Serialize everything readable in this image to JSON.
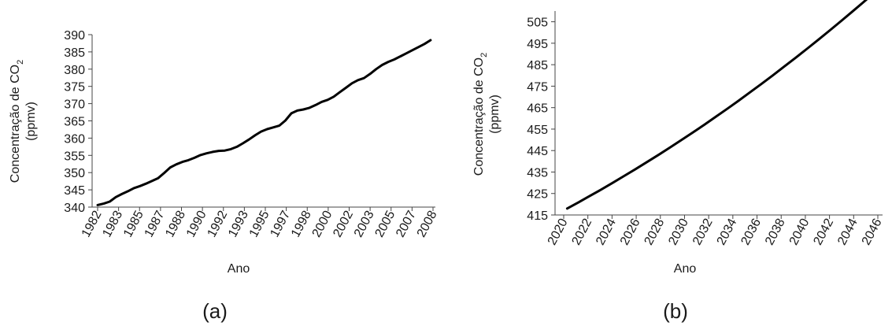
{
  "chart_data": [
    {
      "type": "line",
      "panel_label": "(a)",
      "xlabel": "Ano",
      "ylabel_main": "Concentração de CO",
      "ylabel_sub": "2",
      "ylabel_unit": "(ppmv)",
      "ylim": [
        340,
        390
      ],
      "yticks": [
        "340",
        "345",
        "350",
        "355",
        "360",
        "365",
        "370",
        "375",
        "380",
        "385",
        "390"
      ],
      "xticks": [
        "1982",
        "1983",
        "1985",
        "1987",
        "1988",
        "1990",
        "1992",
        "1993",
        "1995",
        "1997",
        "1998",
        "2000",
        "2002",
        "2003",
        "2005",
        "2007",
        "2008"
      ],
      "xlim": [
        1982,
        2009.7
      ],
      "grid": false,
      "legend": "none",
      "series": [
        {
          "color": "#000000",
          "x": [
            1982.0,
            1982.5,
            1983.0,
            1983.5,
            1984.0,
            1984.5,
            1985.0,
            1985.5,
            1986.0,
            1986.5,
            1987.0,
            1987.5,
            1988.0,
            1988.5,
            1989.0,
            1989.5,
            1990.0,
            1990.5,
            1991.0,
            1991.5,
            1992.0,
            1992.5,
            1993.0,
            1993.5,
            1994.0,
            1994.5,
            1995.0,
            1995.5,
            1996.0,
            1996.5,
            1997.0,
            1997.5,
            1998.0,
            1998.5,
            1999.0,
            1999.5,
            2000.0,
            2000.5,
            2001.0,
            2001.5,
            2002.0,
            2002.5,
            2003.0,
            2003.5,
            2004.0,
            2004.5,
            2005.0,
            2005.5,
            2006.0,
            2006.5,
            2007.0,
            2007.5,
            2008.0,
            2008.5,
            2009.0,
            2009.5
          ],
          "y": [
            340.6,
            341.0,
            341.6,
            342.9,
            343.8,
            344.6,
            345.5,
            346.1,
            346.8,
            347.6,
            348.4,
            349.9,
            351.5,
            352.4,
            353.1,
            353.6,
            354.3,
            355.1,
            355.6,
            356.0,
            356.3,
            356.4,
            356.8,
            357.5,
            358.5,
            359.6,
            360.8,
            361.9,
            362.6,
            363.1,
            363.6,
            365.1,
            367.2,
            368.0,
            368.3,
            368.8,
            369.6,
            370.5,
            371.1,
            372.0,
            373.3,
            374.6,
            375.9,
            376.8,
            377.4,
            378.6,
            380.0,
            381.2,
            382.1,
            382.8,
            383.7,
            384.6,
            385.5,
            386.4,
            387.3,
            388.4
          ]
        }
      ]
    },
    {
      "type": "line",
      "panel_label": "(b)",
      "xlabel": "Ano",
      "ylabel_main": "Concentração de CO",
      "ylabel_sub": "2",
      "ylabel_unit": "(ppmv)",
      "ylim": [
        415,
        510
      ],
      "yticks": [
        "415",
        "425",
        "435",
        "445",
        "455",
        "465",
        "475",
        "485",
        "495",
        "505"
      ],
      "xticks": [
        "2020",
        "2022",
        "2024",
        "2026",
        "2028",
        "2030",
        "2032",
        "2034",
        "2036",
        "2038",
        "2040",
        "2042",
        "2044",
        "2046"
      ],
      "xlim": [
        2019.7,
        2047.2
      ],
      "grid": false,
      "legend": "none",
      "series": [
        {
          "color": "#000000",
          "x": [
            2020,
            2021,
            2022,
            2023,
            2024,
            2025,
            2026,
            2027,
            2028,
            2029,
            2030,
            2031,
            2032,
            2033,
            2034,
            2035,
            2036,
            2037,
            2038,
            2039,
            2040,
            2041,
            2042,
            2043,
            2044,
            2045,
            2046,
            2047
          ],
          "y": [
            418.0,
            420.9,
            423.9,
            426.9,
            430.0,
            433.2,
            436.4,
            439.7,
            443.0,
            446.4,
            449.9,
            453.4,
            457.0,
            460.7,
            464.4,
            468.2,
            472.1,
            476.0,
            480.0,
            484.1,
            488.2,
            492.4,
            496.7,
            501.0,
            505.4,
            509.9,
            514.4,
            519.0
          ]
        }
      ]
    }
  ]
}
